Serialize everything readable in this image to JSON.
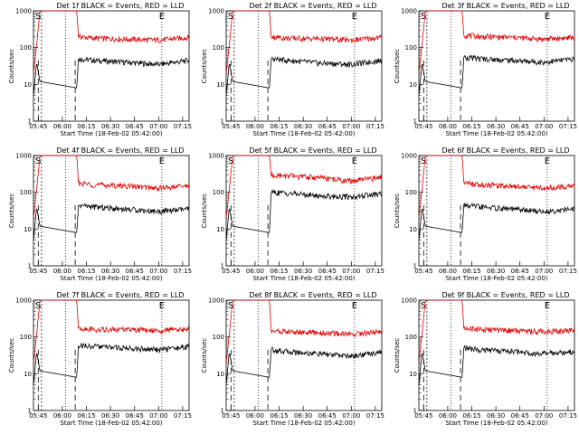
{
  "colors": {
    "events": "#000000",
    "lld": "#e00000",
    "axes": "#000000"
  },
  "chart_data": [
    {
      "type": "line",
      "title": "Det 1f BLACK = Events, RED = LLD",
      "xlabel": "Start Time (18-Feb-02 05:42:00)",
      "ylabel": "Counts/sec",
      "yscale": "log",
      "ylim": [
        1,
        1000
      ],
      "xlim": [
        "05:42",
        "07:19"
      ],
      "xticks": [
        "05:45",
        "06:00",
        "06:15",
        "06:30",
        "06:45",
        "07:00",
        "07:15"
      ],
      "yticks": [
        "1",
        "10",
        "100",
        "1000"
      ],
      "markers": [
        {
          "label": "E",
          "time": "07:02"
        },
        {
          "label": "S",
          "time": "05:45"
        }
      ],
      "series": [
        {
          "name": "Events",
          "color": "#000000",
          "x": [
            "05:42",
            "05:44",
            "05:46",
            "06:09",
            "06:10",
            "06:20",
            "06:40",
            "07:00",
            "07:19"
          ],
          "y": [
            5,
            40,
            12,
            8,
            50,
            45,
            40,
            35,
            45
          ]
        },
        {
          "name": "LLD",
          "color": "#e00000",
          "x": [
            "05:42",
            "05:44",
            "05:46",
            "06:09",
            "06:10",
            "06:20",
            "06:40",
            "07:00",
            "07:19"
          ],
          "y": [
            20,
            120,
            1000,
            1000,
            200,
            180,
            170,
            160,
            190
          ]
        }
      ]
    },
    {
      "type": "line",
      "title": "Det 2f BLACK = Events, RED = LLD",
      "xlabel": "Start Time (18-Feb-02 05:42:00)",
      "ylabel": "Counts/sec",
      "yscale": "log",
      "ylim": [
        1,
        1000
      ],
      "xlim": [
        "05:42",
        "07:19"
      ],
      "xticks": [
        "05:45",
        "06:00",
        "06:15",
        "06:30",
        "06:45",
        "07:00",
        "07:15"
      ],
      "yticks": [
        "1",
        "10",
        "100",
        "1000"
      ],
      "markers": [
        {
          "label": "E",
          "time": "07:02"
        },
        {
          "label": "S",
          "time": "05:45"
        }
      ],
      "series": [
        {
          "name": "Events",
          "color": "#000000",
          "x": [
            "05:42",
            "05:44",
            "05:46",
            "06:09",
            "06:10",
            "06:20",
            "06:40",
            "07:00",
            "07:19"
          ],
          "y": [
            5,
            40,
            12,
            8,
            50,
            45,
            38,
            35,
            45
          ]
        },
        {
          "name": "LLD",
          "color": "#e00000",
          "x": [
            "05:42",
            "05:44",
            "05:46",
            "06:09",
            "06:10",
            "06:20",
            "06:40",
            "07:00",
            "07:19"
          ],
          "y": [
            20,
            120,
            1000,
            1000,
            200,
            180,
            175,
            160,
            190
          ]
        }
      ]
    },
    {
      "type": "line",
      "title": "Det 3f BLACK = Events, RED = LLD",
      "xlabel": "Start Time (18-Feb-02 05:42:00)",
      "ylabel": "Counts/sec",
      "yscale": "log",
      "ylim": [
        1,
        1000
      ],
      "xlim": [
        "05:42",
        "07:19"
      ],
      "xticks": [
        "05:45",
        "06:00",
        "06:15",
        "06:30",
        "06:45",
        "07:00",
        "07:15"
      ],
      "yticks": [
        "1",
        "10",
        "100",
        "1000"
      ],
      "markers": [
        {
          "label": "E",
          "time": "07:02"
        },
        {
          "label": "S",
          "time": "05:45"
        }
      ],
      "series": [
        {
          "name": "Events",
          "color": "#000000",
          "x": [
            "05:42",
            "05:44",
            "05:46",
            "06:09",
            "06:10",
            "06:20",
            "06:40",
            "07:00",
            "07:19"
          ],
          "y": [
            5,
            40,
            12,
            8,
            55,
            50,
            45,
            40,
            50
          ]
        },
        {
          "name": "LLD",
          "color": "#e00000",
          "x": [
            "05:42",
            "05:44",
            "05:46",
            "06:09",
            "06:10",
            "06:20",
            "06:40",
            "07:00",
            "07:19"
          ],
          "y": [
            20,
            120,
            1000,
            1000,
            220,
            200,
            190,
            170,
            190
          ]
        }
      ]
    },
    {
      "type": "line",
      "title": "Det 4f BLACK = Events, RED = LLD",
      "xlabel": "Start Time (18-Feb-02 05:42:00)",
      "ylabel": "Counts/sec",
      "yscale": "log",
      "ylim": [
        1,
        1000
      ],
      "xlim": [
        "05:42",
        "07:19"
      ],
      "xticks": [
        "05:45",
        "06:00",
        "06:15",
        "06:30",
        "06:45",
        "07:00",
        "07:15"
      ],
      "yticks": [
        "1",
        "10",
        "100",
        "1000"
      ],
      "markers": [
        {
          "label": "E",
          "time": "07:02"
        },
        {
          "label": "S",
          "time": "05:45"
        }
      ],
      "series": [
        {
          "name": "Events",
          "color": "#000000",
          "x": [
            "05:42",
            "05:44",
            "05:46",
            "06:09",
            "06:10",
            "06:20",
            "06:40",
            "07:00",
            "07:19"
          ],
          "y": [
            5,
            40,
            12,
            8,
            45,
            40,
            35,
            30,
            35
          ]
        },
        {
          "name": "LLD",
          "color": "#e00000",
          "x": [
            "05:42",
            "05:44",
            "05:46",
            "06:09",
            "06:10",
            "06:20",
            "06:40",
            "07:00",
            "07:19"
          ],
          "y": [
            20,
            120,
            1000,
            1000,
            180,
            160,
            150,
            130,
            150
          ]
        }
      ]
    },
    {
      "type": "line",
      "title": "Det 5f BLACK = Events, RED = LLD",
      "xlabel": "Start Time (18-Feb-02 05:42:00)",
      "ylabel": "Counts/sec",
      "yscale": "log",
      "ylim": [
        1,
        1000
      ],
      "xlim": [
        "05:42",
        "07:19"
      ],
      "xticks": [
        "05:45",
        "06:00",
        "06:15",
        "06:30",
        "06:45",
        "07:00",
        "07:15"
      ],
      "yticks": [
        "1",
        "10",
        "100",
        "1000"
      ],
      "markers": [
        {
          "label": "E",
          "time": "07:02"
        },
        {
          "label": "S",
          "time": "05:45"
        }
      ],
      "series": [
        {
          "name": "Events",
          "color": "#000000",
          "x": [
            "05:42",
            "05:44",
            "05:46",
            "06:09",
            "06:10",
            "06:20",
            "06:40",
            "07:00",
            "07:19"
          ],
          "y": [
            5,
            40,
            12,
            8,
            100,
            95,
            80,
            75,
            90
          ]
        },
        {
          "name": "LLD",
          "color": "#e00000",
          "x": [
            "05:42",
            "05:44",
            "05:46",
            "06:09",
            "06:10",
            "06:20",
            "06:40",
            "07:00",
            "07:19"
          ],
          "y": [
            20,
            120,
            1000,
            1000,
            300,
            280,
            250,
            200,
            260
          ]
        }
      ]
    },
    {
      "type": "line",
      "title": "Det 6f BLACK = Events, RED = LLD",
      "xlabel": "Start Time (18-Feb-02 05:42:00)",
      "ylabel": "Counts/sec",
      "yscale": "log",
      "ylim": [
        1,
        1000
      ],
      "xlim": [
        "05:42",
        "07:19"
      ],
      "xticks": [
        "05:45",
        "06:00",
        "06:15",
        "06:30",
        "06:45",
        "07:00",
        "07:15"
      ],
      "yticks": [
        "1",
        "10",
        "100",
        "1000"
      ],
      "markers": [
        {
          "label": "E",
          "time": "07:02"
        },
        {
          "label": "S",
          "time": "05:45"
        }
      ],
      "series": [
        {
          "name": "Events",
          "color": "#000000",
          "x": [
            "05:42",
            "05:44",
            "05:46",
            "06:09",
            "06:10",
            "06:20",
            "06:40",
            "07:00",
            "07:19"
          ],
          "y": [
            5,
            40,
            12,
            8,
            45,
            40,
            35,
            30,
            35
          ]
        },
        {
          "name": "LLD",
          "color": "#e00000",
          "x": [
            "05:42",
            "05:44",
            "05:46",
            "06:09",
            "06:10",
            "06:20",
            "06:40",
            "07:00",
            "07:19"
          ],
          "y": [
            20,
            120,
            1000,
            1000,
            180,
            160,
            150,
            130,
            150
          ]
        }
      ]
    },
    {
      "type": "line",
      "title": "Det 7f BLACK = Events, RED = LLD",
      "xlabel": "Start Time (18-Feb-02 05:42:00)",
      "ylabel": "Counts/sec",
      "yscale": "log",
      "ylim": [
        1,
        1000
      ],
      "xlim": [
        "05:42",
        "07:19"
      ],
      "xticks": [
        "05:45",
        "06:00",
        "06:15",
        "06:30",
        "06:45",
        "07:00",
        "07:15"
      ],
      "yticks": [
        "1",
        "10",
        "100",
        "1000"
      ],
      "markers": [
        {
          "label": "E",
          "time": "07:02"
        },
        {
          "label": "S",
          "time": "05:45"
        }
      ],
      "series": [
        {
          "name": "Events",
          "color": "#000000",
          "x": [
            "05:42",
            "05:44",
            "05:46",
            "06:09",
            "06:10",
            "06:20",
            "06:40",
            "07:00",
            "07:19"
          ],
          "y": [
            5,
            40,
            12,
            8,
            60,
            55,
            50,
            45,
            55
          ]
        },
        {
          "name": "LLD",
          "color": "#e00000",
          "x": [
            "05:42",
            "05:44",
            "05:46",
            "06:09",
            "06:10",
            "06:20",
            "06:40",
            "07:00",
            "07:19"
          ],
          "y": [
            20,
            120,
            1000,
            1000,
            170,
            160,
            160,
            150,
            170
          ]
        }
      ]
    },
    {
      "type": "line",
      "title": "Det 8f BLACK = Events, RED = LLD",
      "xlabel": "Start Time (18-Feb-02 05:42:00)",
      "ylabel": "Counts/sec",
      "yscale": "log",
      "ylim": [
        1,
        1000
      ],
      "xlim": [
        "05:42",
        "07:19"
      ],
      "xticks": [
        "05:45",
        "06:00",
        "06:15",
        "06:30",
        "06:45",
        "07:00",
        "07:15"
      ],
      "yticks": [
        "1",
        "10",
        "100",
        "1000"
      ],
      "markers": [
        {
          "label": "E",
          "time": "07:02"
        },
        {
          "label": "S",
          "time": "05:45"
        }
      ],
      "series": [
        {
          "name": "Events",
          "color": "#000000",
          "x": [
            "05:42",
            "05:44",
            "05:46",
            "06:09",
            "06:10",
            "06:20",
            "06:40",
            "07:00",
            "07:19"
          ],
          "y": [
            5,
            40,
            12,
            8,
            45,
            40,
            35,
            30,
            40
          ]
        },
        {
          "name": "LLD",
          "color": "#e00000",
          "x": [
            "05:42",
            "05:44",
            "05:46",
            "06:09",
            "06:10",
            "06:20",
            "06:40",
            "07:00",
            "07:19"
          ],
          "y": [
            20,
            120,
            1000,
            1000,
            150,
            140,
            130,
            120,
            140
          ]
        }
      ]
    },
    {
      "type": "line",
      "title": "Det 9f BLACK = Events, RED = LLD",
      "xlabel": "Start Time (18-Feb-02 05:42:00)",
      "ylabel": "Counts/sec",
      "yscale": "log",
      "ylim": [
        1,
        1000
      ],
      "xlim": [
        "05:42",
        "07:19"
      ],
      "xticks": [
        "05:45",
        "06:00",
        "06:15",
        "06:30",
        "06:45",
        "07:00",
        "07:15"
      ],
      "yticks": [
        "1",
        "10",
        "100",
        "1000"
      ],
      "markers": [
        {
          "label": "E",
          "time": "07:02"
        },
        {
          "label": "S",
          "time": "05:45"
        }
      ],
      "series": [
        {
          "name": "Events",
          "color": "#000000",
          "x": [
            "05:42",
            "05:44",
            "05:46",
            "06:09",
            "06:10",
            "06:20",
            "06:40",
            "07:00",
            "07:19"
          ],
          "y": [
            5,
            40,
            12,
            8,
            50,
            45,
            40,
            35,
            40
          ]
        },
        {
          "name": "LLD",
          "color": "#e00000",
          "x": [
            "05:42",
            "05:44",
            "05:46",
            "06:09",
            "06:10",
            "06:20",
            "06:40",
            "07:00",
            "07:19"
          ],
          "y": [
            20,
            120,
            1000,
            1000,
            170,
            160,
            150,
            140,
            150
          ]
        }
      ]
    }
  ]
}
